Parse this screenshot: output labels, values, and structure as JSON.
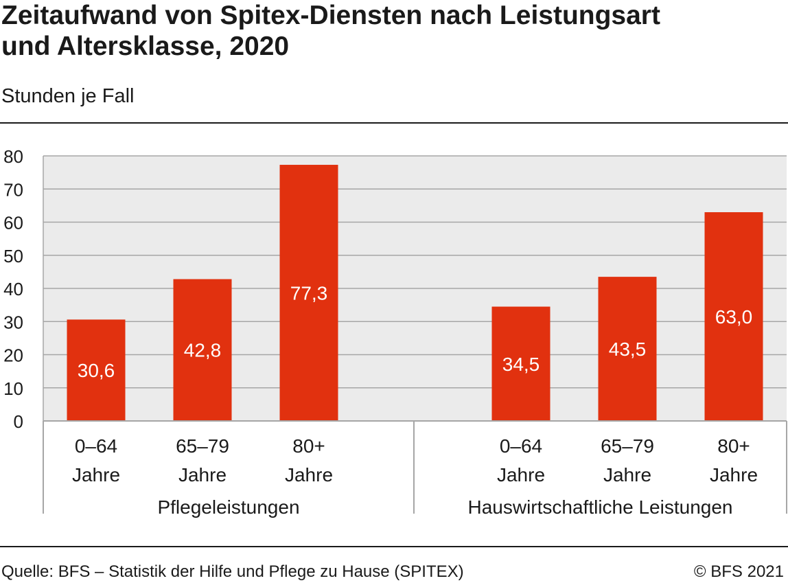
{
  "header": {
    "title_line1": "Zeitaufwand von Spitex-Diensten nach Leistungsart",
    "title_line2": "und Altersklasse, 2020",
    "subtitle": "Stunden je Fall"
  },
  "footer": {
    "source": "Quelle: BFS – Statistik der Hilfe und Pflege zu Hause (SPITEX)",
    "copyright": "© BFS 2021"
  },
  "colors": {
    "bar": "#e1310f",
    "plot_background": "#ebebeb",
    "grid": "#a6a6a6",
    "text": "#1a1a1a",
    "bar_label": "#ffffff"
  },
  "chart_data": {
    "type": "bar",
    "title": "Zeitaufwand von Spitex-Diensten nach Leistungsart und Altersklasse, 2020",
    "subtitle": "Stunden je Fall",
    "ylim": [
      0,
      80
    ],
    "yticks": [
      0,
      10,
      20,
      30,
      40,
      50,
      60,
      70,
      80
    ],
    "grid": true,
    "legend": "none",
    "groups": [
      {
        "name": "Pflegeleistungen",
        "categories": [
          [
            "0–64",
            "Jahre"
          ],
          [
            "65–79",
            "Jahre"
          ],
          [
            "80+",
            "Jahre"
          ]
        ],
        "values": [
          30.6,
          42.8,
          77.3
        ],
        "labels": [
          "30,6",
          "42,8",
          "77,3"
        ]
      },
      {
        "name": "Hauswirtschaftliche Leistungen",
        "categories": [
          [
            "0–64",
            "Jahre"
          ],
          [
            "65–79",
            "Jahre"
          ],
          [
            "80+",
            "Jahre"
          ]
        ],
        "values": [
          34.5,
          43.5,
          63.0
        ],
        "labels": [
          "34,5",
          "43,5",
          "63,0"
        ]
      }
    ]
  }
}
